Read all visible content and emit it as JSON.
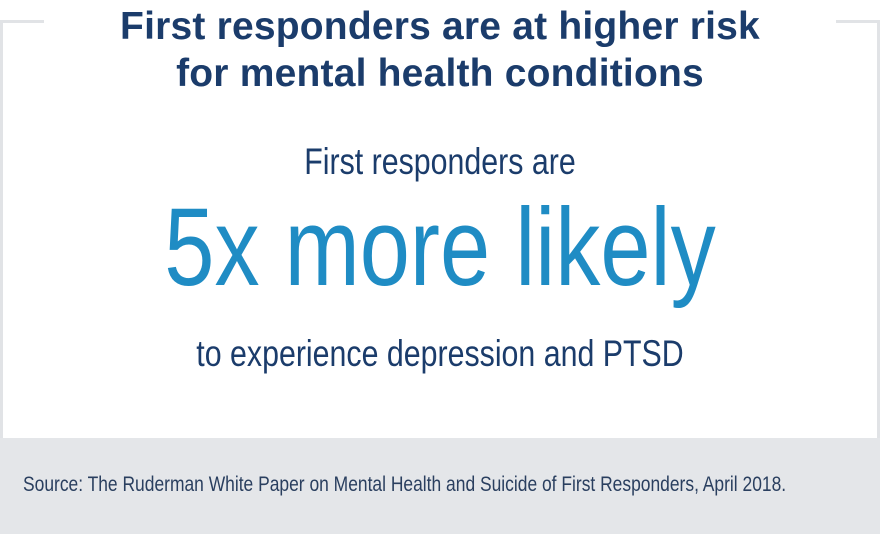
{
  "headline": {
    "line1": "First responders are at higher risk",
    "line2": "for mental health conditions"
  },
  "stat": {
    "lead": "First responders are",
    "value": "5x more likely",
    "tail": "to experience depression and PTSD"
  },
  "footer": {
    "source": "Source: The Ruderman White Paper on Mental Health and Suicide of First Responders, April 2018."
  },
  "colors": {
    "navy": "#1b3c6b",
    "accent_blue": "#1f8cc4",
    "footer_bg": "#e4e6e9",
    "frame": "#e1e3e6"
  }
}
